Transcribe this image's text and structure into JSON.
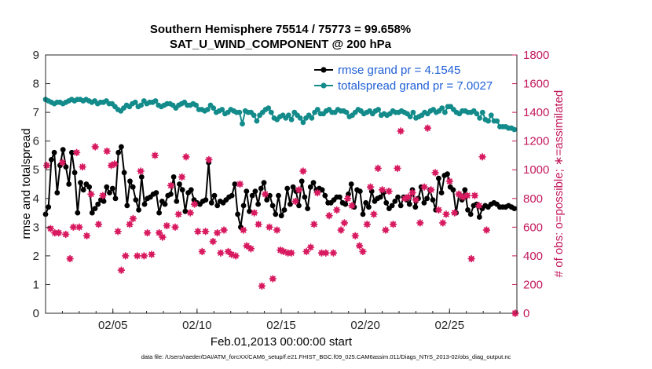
{
  "chart_data": {
    "type": "line",
    "title": "Southern Hemisphere 75514 / 75773 = 99.658%",
    "subtitle": "SAT_U_WIND_COMPONENT @ 200 hPa",
    "xlabel": "Feb.01,2013 00:00:00 start",
    "ylabel_left": "rmse and totalspread",
    "ylabel_right": "# of obs: o=possible; ∗=assimilated",
    "footnote": "data file: /Users/raeder/DAI/ATM_forcXX/CAM6_setup/f.e21.FHIST_BGC.f09_025.CAM6assim.011/Diags_NTrS_2013-02/obs_diag_output.nc",
    "x_range_days": [
      1,
      29
    ],
    "x_ticks": [
      {
        "day": 5,
        "label": "02/05"
      },
      {
        "day": 10,
        "label": "02/10"
      },
      {
        "day": 15,
        "label": "02/15"
      },
      {
        "day": 20,
        "label": "02/20"
      },
      {
        "day": 25,
        "label": "02/25"
      }
    ],
    "ylim_left": [
      0,
      9
    ],
    "yticks_left": [
      "0",
      "1",
      "2",
      "3",
      "4",
      "5",
      "6",
      "7",
      "8",
      "9"
    ],
    "ylim_right": [
      0,
      1800
    ],
    "yticks_right": [
      "0",
      "200",
      "400",
      "600",
      "800",
      "1000",
      "1200",
      "1400",
      "1600",
      "1800"
    ],
    "colors": {
      "rmse": "#000000",
      "totalspread": "#138b8b",
      "obs": "#d81b60",
      "legend_text": "#1f5fd6",
      "right_axis": "#c2185b"
    },
    "series": [
      {
        "name": "rmse grand pr = 4.1545",
        "axis": "left",
        "marker": "circle",
        "values": [
          3.45,
          3.7,
          5.35,
          5.6,
          4.2,
          5.15,
          5.7,
          5.1,
          4.5,
          5.6,
          4.9,
          3.5,
          4.55,
          4.3,
          4.5,
          4.4,
          3.5,
          3.65,
          3.8,
          3.95,
          3.9,
          4.4,
          4.2,
          4.35,
          4.0,
          5.6,
          5.8,
          4.9,
          3.75,
          4.6,
          4.4,
          3.95,
          3.6,
          4.75,
          3.8,
          4.0,
          4.05,
          4.15,
          4.2,
          3.5,
          3.9,
          3.8,
          4.1,
          4.15,
          4.75,
          3.9,
          4.5,
          4.3,
          3.55,
          4.2,
          4.3,
          3.95,
          3.85,
          3.8,
          3.9,
          3.95,
          5.25,
          3.85,
          4.1,
          3.75,
          3.9,
          3.85,
          3.95,
          4.05,
          4.1,
          4.5,
          3.45,
          3.0,
          3.75,
          4.25,
          3.55,
          4.1,
          4.25,
          3.8,
          4.35,
          4.55,
          3.95,
          4.1,
          3.75,
          3.45,
          4.1,
          3.4,
          3.6,
          4.35,
          3.8,
          4.4,
          4.25,
          3.75,
          4.6,
          4.05,
          3.65,
          4.4,
          4.55,
          4.3,
          4.35,
          4.3,
          4.1,
          3.85,
          3.85,
          3.95,
          4.05,
          4.05,
          3.85,
          3.8,
          4.15,
          4.5,
          3.7,
          4.3,
          4.25,
          3.45,
          3.85,
          3.7,
          4.25,
          3.9,
          4.0,
          4.05,
          4.2,
          3.85,
          3.65,
          3.75,
          3.9,
          4.05,
          3.75,
          4.05,
          3.95,
          3.8,
          4.3,
          3.7,
          4.0,
          4.4,
          3.85,
          4.0,
          4.3,
          3.95,
          3.6,
          4.7,
          4.2,
          4.8,
          4.85,
          4.4,
          4.3,
          3.5,
          4.15,
          3.95,
          4.3,
          3.6,
          3.45,
          3.75,
          3.8,
          3.35,
          3.65,
          3.75,
          3.7,
          3.8,
          3.85,
          3.8,
          3.7,
          3.7,
          3.7,
          3.75,
          3.7,
          3.65
        ]
      },
      {
        "name": "totalspread grand pr = 7.0027",
        "axis": "left",
        "marker": "circle",
        "values": [
          7.45,
          7.4,
          7.35,
          7.3,
          7.35,
          7.35,
          7.3,
          7.35,
          7.4,
          7.45,
          7.4,
          7.45,
          7.45,
          7.4,
          7.45,
          7.4,
          7.35,
          7.4,
          7.3,
          7.35,
          7.35,
          7.4,
          7.3,
          7.3,
          7.2,
          7.1,
          7.05,
          7.15,
          7.25,
          7.2,
          7.3,
          7.35,
          7.2,
          7.25,
          7.4,
          7.3,
          7.35,
          7.35,
          7.4,
          7.25,
          7.2,
          7.25,
          7.3,
          7.3,
          7.25,
          7.15,
          7.25,
          7.3,
          7.35,
          7.25,
          7.25,
          7.3,
          7.25,
          7.1,
          7.1,
          7.05,
          7.1,
          7.25,
          7.15,
          7.0,
          7.05,
          7.1,
          6.95,
          7.0,
          7.1,
          7.05,
          7.0,
          7.0,
          6.6,
          7.05,
          7.0,
          7.0,
          6.9,
          6.7,
          6.9,
          7.0,
          7.1,
          7.15,
          7.0,
          6.8,
          6.75,
          6.85,
          6.9,
          6.8,
          6.9,
          6.75,
          7.0,
          6.9,
          6.8,
          6.65,
          6.8,
          6.9,
          6.8,
          7.0,
          7.1,
          6.95,
          6.95,
          7.05,
          7.1,
          7.0,
          7.0,
          7.1,
          7.05,
          7.05,
          7.0,
          6.85,
          6.9,
          7.0,
          7.1,
          7.05,
          6.95,
          7.0,
          7.05,
          6.95,
          7.05,
          7.1,
          6.9,
          6.95,
          6.9,
          6.95,
          7.05,
          7.0,
          7.0,
          7.05,
          7.0,
          6.95,
          6.85,
          7.0,
          6.8,
          6.85,
          6.9,
          7.0,
          6.95,
          7.05,
          7.1,
          7.0,
          7.05,
          7.15,
          7.0,
          7.2,
          7.2,
          7.1,
          7.0,
          6.95,
          7.05,
          7.05,
          7.0,
          7.0,
          7.05,
          6.95,
          6.8,
          7.0,
          6.75,
          6.7,
          6.9,
          6.7,
          6.7,
          6.5,
          6.5,
          6.5,
          6.45,
          6.45,
          6.4
        ]
      },
      {
        "name": "# assimilated",
        "axis": "right",
        "marker": "asterisk",
        "points": [
          [
            1.07,
            1030
          ],
          [
            1.3,
            590
          ],
          [
            1.55,
            560
          ],
          [
            1.78,
            560
          ],
          [
            2.0,
            1050
          ],
          [
            2.2,
            550
          ],
          [
            2.45,
            380
          ],
          [
            2.65,
            600
          ],
          [
            2.85,
            1120
          ],
          [
            3.0,
            600
          ],
          [
            3.2,
            1020
          ],
          [
            3.45,
            540
          ],
          [
            3.7,
            830
          ],
          [
            3.95,
            1160
          ],
          [
            4.15,
            620
          ],
          [
            4.4,
            820
          ],
          [
            4.65,
            1130
          ],
          [
            4.9,
            1030
          ],
          [
            5.1,
            1040
          ],
          [
            5.3,
            570
          ],
          [
            5.5,
            300
          ],
          [
            5.75,
            400
          ],
          [
            6.0,
            620
          ],
          [
            6.2,
            660
          ],
          [
            6.45,
            400
          ],
          [
            6.65,
            990
          ],
          [
            6.85,
            400
          ],
          [
            7.05,
            560
          ],
          [
            7.3,
            410
          ],
          [
            7.5,
            1100
          ],
          [
            7.75,
            560
          ],
          [
            7.95,
            530
          ],
          [
            8.2,
            610
          ],
          [
            8.45,
            890
          ],
          [
            8.7,
            600
          ],
          [
            8.9,
            690
          ],
          [
            9.1,
            950
          ],
          [
            9.35,
            1090
          ],
          [
            9.6,
            700
          ],
          [
            9.85,
            760
          ],
          [
            10.05,
            570
          ],
          [
            10.3,
            430
          ],
          [
            10.5,
            570
          ],
          [
            10.7,
            1070
          ],
          [
            10.95,
            500
          ],
          [
            11.2,
            560
          ],
          [
            11.4,
            420
          ],
          [
            11.6,
            580
          ],
          [
            11.85,
            430
          ],
          [
            12.05,
            410
          ],
          [
            12.3,
            400
          ],
          [
            12.55,
            900
          ],
          [
            12.75,
            580
          ],
          [
            12.95,
            470
          ],
          [
            13.2,
            450
          ],
          [
            13.4,
            700
          ],
          [
            13.65,
            620
          ],
          [
            13.85,
            190
          ],
          [
            14.05,
            830
          ],
          [
            14.3,
            600
          ],
          [
            14.5,
            240
          ],
          [
            14.75,
            580
          ],
          [
            14.95,
            440
          ],
          [
            15.15,
            430
          ],
          [
            15.4,
            420
          ],
          [
            15.6,
            420
          ],
          [
            15.85,
            780
          ],
          [
            16.05,
            860
          ],
          [
            16.3,
            990
          ],
          [
            16.5,
            430
          ],
          [
            16.75,
            460
          ],
          [
            16.95,
            620
          ],
          [
            17.15,
            840
          ],
          [
            17.4,
            420
          ],
          [
            17.65,
            420
          ],
          [
            17.85,
            680
          ],
          [
            18.1,
            420
          ],
          [
            18.3,
            720
          ],
          [
            18.55,
            580
          ],
          [
            18.75,
            630
          ],
          [
            18.95,
            800
          ],
          [
            19.2,
            750
          ],
          [
            19.4,
            540
          ],
          [
            19.65,
            470
          ],
          [
            19.85,
            430
          ],
          [
            20.1,
            620
          ],
          [
            20.3,
            880
          ],
          [
            20.5,
            690
          ],
          [
            20.75,
            1010
          ],
          [
            21.0,
            860
          ],
          [
            21.2,
            580
          ],
          [
            21.4,
            850
          ],
          [
            21.65,
            620
          ],
          [
            21.9,
            1010
          ],
          [
            22.1,
            1270
          ],
          [
            22.35,
            800
          ],
          [
            22.55,
            810
          ],
          [
            22.8,
            840
          ],
          [
            23.0,
            790
          ],
          [
            23.25,
            630
          ],
          [
            23.5,
            880
          ],
          [
            23.7,
            1290
          ],
          [
            23.9,
            860
          ],
          [
            24.15,
            980
          ],
          [
            24.35,
            720
          ],
          [
            24.6,
            630
          ],
          [
            24.8,
            690
          ],
          [
            25.0,
            920
          ],
          [
            25.3,
            700
          ],
          [
            25.55,
            830
          ],
          [
            25.8,
            810
          ],
          [
            26.05,
            820
          ],
          [
            26.3,
            380
          ],
          [
            26.5,
            820
          ],
          [
            26.75,
            750
          ],
          [
            26.95,
            1090
          ],
          [
            27.2,
            580
          ]
        ]
      },
      {
        "name": "# possible",
        "axis": "right",
        "marker": "circle-open",
        "points": [
          [
            28.9,
            0
          ]
        ]
      }
    ]
  }
}
